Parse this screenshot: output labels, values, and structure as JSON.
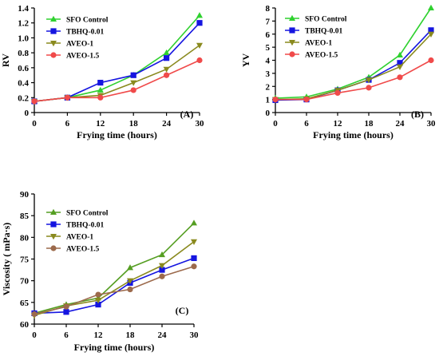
{
  "figure": {
    "colors": {
      "SFO Control": "#2fd12f",
      "TBHQ-0.01": "#1515e0",
      "AVEO-1": "#8a8a1e",
      "AVEO-1.5": "#f04a4a",
      "SFO Control (C)": "#559e22",
      "AVEO-1.5 (C)": "#9c6a4c"
    }
  },
  "chart_data": [
    {
      "type": "line",
      "panel_label": "(A)",
      "xlabel": "Frying time (hours)",
      "ylabel": "RV",
      "x": [
        0,
        6,
        12,
        18,
        24,
        30
      ],
      "xticks": [
        "0",
        "6",
        "12",
        "18",
        "24",
        "30"
      ],
      "ylim": [
        0,
        1.4
      ],
      "yticks": [
        "0",
        "0.2",
        "0.4",
        "0.6",
        "0.8",
        "1.0",
        "1.2",
        "1.4"
      ],
      "legend_position": "top-left",
      "series": [
        {
          "name": "SFO Control",
          "marker": "triangle-up",
          "color": "#2fd12f",
          "values": [
            0.15,
            0.2,
            0.3,
            0.5,
            0.8,
            1.3
          ]
        },
        {
          "name": "TBHQ-0.01",
          "marker": "square",
          "color": "#1515e0",
          "values": [
            0.15,
            0.2,
            0.4,
            0.5,
            0.73,
            1.2
          ]
        },
        {
          "name": "AVEO-1",
          "marker": "triangle-down",
          "color": "#8a8a1e",
          "values": [
            0.15,
            0.2,
            0.23,
            0.4,
            0.58,
            0.9
          ]
        },
        {
          "name": "AVEO-1.5",
          "marker": "circle",
          "color": "#f04a4a",
          "values": [
            0.15,
            0.2,
            0.2,
            0.3,
            0.5,
            0.7
          ]
        }
      ]
    },
    {
      "type": "line",
      "panel_label": "(B)",
      "xlabel": "Frying time (hours)",
      "ylabel": "YV",
      "x": [
        0,
        6,
        12,
        18,
        24,
        30
      ],
      "xticks": [
        "0",
        "6",
        "12",
        "18",
        "24",
        "30"
      ],
      "ylim": [
        0,
        8
      ],
      "yticks": [
        "0",
        "1",
        "2",
        "3",
        "4",
        "5",
        "6",
        "7",
        "8"
      ],
      "legend_position": "top-left",
      "series": [
        {
          "name": "SFO Control",
          "marker": "triangle-up",
          "color": "#2fd12f",
          "values": [
            1.1,
            1.2,
            1.8,
            2.7,
            4.4,
            8.0
          ]
        },
        {
          "name": "TBHQ-0.01",
          "marker": "square",
          "color": "#1515e0",
          "values": [
            0.95,
            1.0,
            1.7,
            2.5,
            3.8,
            6.3
          ]
        },
        {
          "name": "AVEO-1",
          "marker": "triangle-down",
          "color": "#8a8a1e",
          "values": [
            1.0,
            1.05,
            1.7,
            2.5,
            3.5,
            6.0
          ]
        },
        {
          "name": "AVEO-1.5",
          "marker": "circle",
          "color": "#f04a4a",
          "values": [
            1.0,
            1.0,
            1.5,
            1.9,
            2.7,
            4.0
          ]
        }
      ]
    },
    {
      "type": "line",
      "panel_label": "(C)",
      "xlabel": "Frying time (hours)",
      "ylabel": "Viscosity ( mPa·s)",
      "x": [
        0,
        6,
        12,
        18,
        24,
        30
      ],
      "xticks": [
        "0",
        "6",
        "12",
        "18",
        "24",
        "30"
      ],
      "ylim": [
        60,
        90
      ],
      "yticks": [
        "60",
        "65",
        "70",
        "75",
        "80",
        "85",
        "90"
      ],
      "legend_position": "top-left",
      "series": [
        {
          "name": "SFO Control",
          "marker": "triangle-up",
          "color": "#559e22",
          "values": [
            62.5,
            64.5,
            66.0,
            73.0,
            76.0,
            83.3
          ]
        },
        {
          "name": "TBHQ-0.01",
          "marker": "square",
          "color": "#1515e0",
          "values": [
            62.5,
            62.8,
            64.5,
            69.5,
            72.5,
            75.2
          ]
        },
        {
          "name": "AVEO-1",
          "marker": "triangle-down",
          "color": "#8a8a1e",
          "values": [
            62.0,
            64.2,
            65.5,
            70.0,
            73.5,
            79.0
          ]
        },
        {
          "name": "AVEO-1.5",
          "marker": "circle",
          "color": "#9c6a4c",
          "values": [
            62.3,
            64.0,
            66.8,
            68.0,
            71.0,
            73.3
          ]
        }
      ]
    }
  ]
}
